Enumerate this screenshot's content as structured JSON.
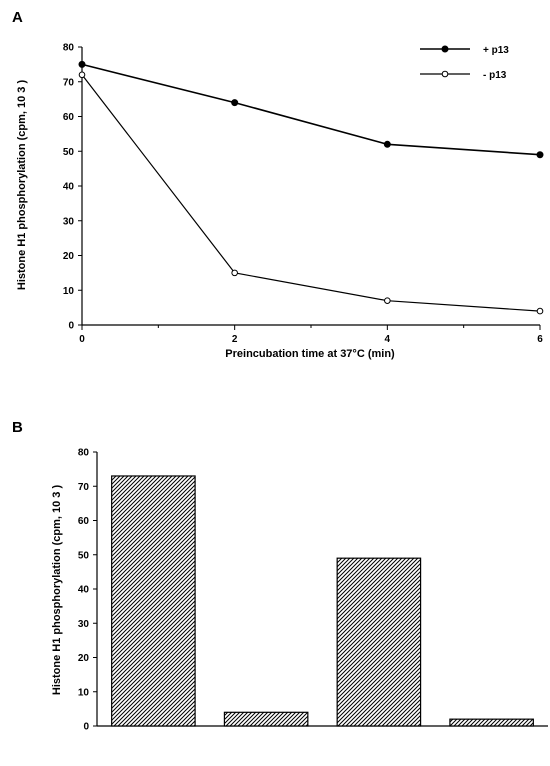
{
  "panels": {
    "a": {
      "label": "A"
    },
    "b": {
      "label": "B"
    }
  },
  "chart_data": [
    {
      "type": "line",
      "panel": "A",
      "xlabel": "Preincubation time at 37°C (min)",
      "ylabel": "Histone H1 phosphorylation (cpm, 10 3 )",
      "xlim": [
        0,
        6
      ],
      "ylim": [
        0,
        80
      ],
      "xticks": [
        0,
        2,
        4,
        6
      ],
      "yticks": [
        0,
        10,
        20,
        30,
        40,
        50,
        60,
        70,
        80
      ],
      "grid": false,
      "legend": "top-right",
      "series": [
        {
          "name": "+ p13",
          "marker": "filled-circle",
          "x": [
            0,
            2,
            4,
            6
          ],
          "y": [
            75,
            64,
            52,
            49
          ]
        },
        {
          "name": "- p13",
          "marker": "open-circle",
          "x": [
            0,
            2,
            4,
            6
          ],
          "y": [
            72,
            15,
            7,
            4
          ]
        }
      ]
    },
    {
      "type": "bar",
      "panel": "B",
      "ylabel": "Histone H1 phosphorylation (cpm, 10 3 )",
      "ylim": [
        0,
        80
      ],
      "yticks": [
        0,
        10,
        20,
        30,
        40,
        50,
        60,
        70,
        80
      ],
      "values": [
        73,
        4,
        49,
        2
      ],
      "fill": "diagonal-hatch"
    }
  ]
}
